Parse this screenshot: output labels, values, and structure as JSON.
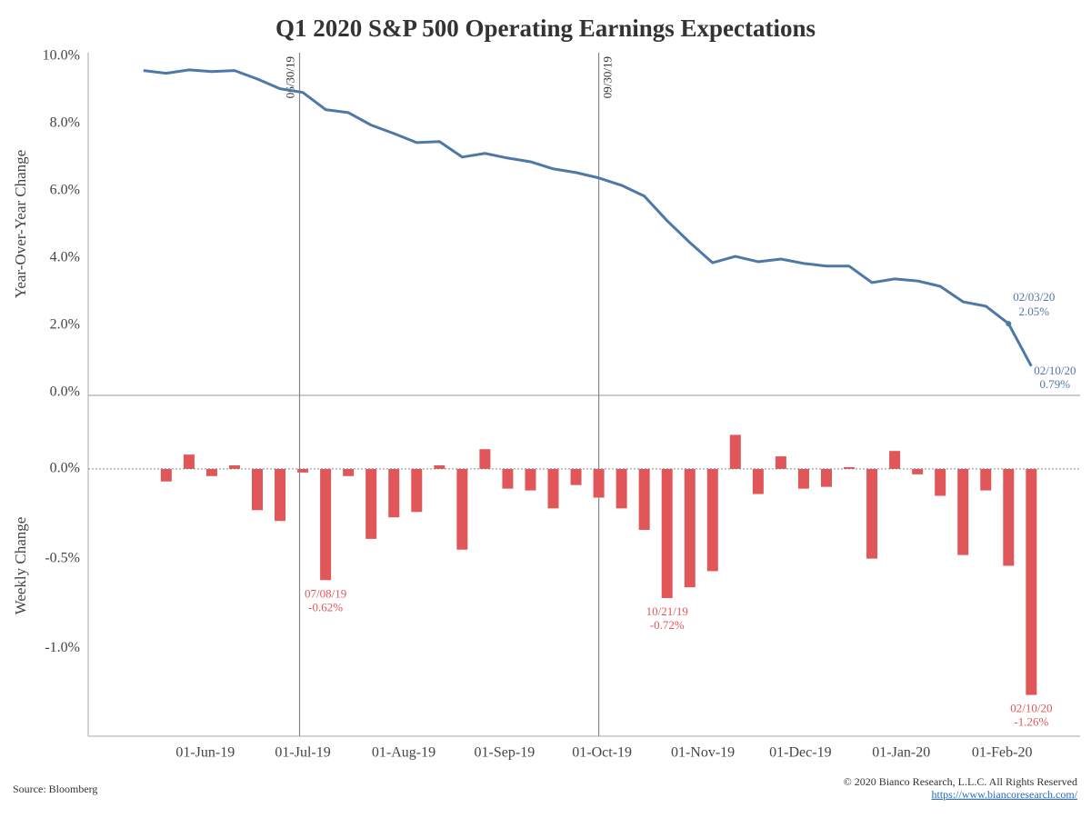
{
  "title": "Q1 2020 S&P 500 Operating Earnings Expectations",
  "source": "Source: Bloomberg",
  "copyright": "© 2020 Bianco Research, L.L.C. All Rights Reserved",
  "url": "https://www.biancoresearch.com/",
  "xlim": [
    "2019-04-26",
    "2020-02-25"
  ],
  "xticks": [
    {
      "value": "2019-06-01",
      "label": "01-Jun-19"
    },
    {
      "value": "2019-07-01",
      "label": "01-Jul-19"
    },
    {
      "value": "2019-08-01",
      "label": "01-Aug-19"
    },
    {
      "value": "2019-09-01",
      "label": "01-Sep-19"
    },
    {
      "value": "2019-10-01",
      "label": "01-Oct-19"
    },
    {
      "value": "2019-11-01",
      "label": "01-Nov-19"
    },
    {
      "value": "2019-12-01",
      "label": "01-Dec-19"
    },
    {
      "value": "2020-01-01",
      "label": "01-Jan-20"
    },
    {
      "value": "2020-02-01",
      "label": "01-Feb-20"
    }
  ],
  "reference_lines": [
    {
      "x": "2019-06-30",
      "label": "06/30/19",
      "label_side": "left"
    },
    {
      "x": "2019-09-30",
      "label": "09/30/19",
      "label_side": "right"
    }
  ],
  "chart_data": [
    {
      "type": "line",
      "y_label": "Year-Over-Year Change",
      "ylim": [
        -0.08,
        10.1
      ],
      "yticks": [
        {
          "value": 0,
          "label": "0.0%"
        },
        {
          "value": 2,
          "label": "2.0%"
        },
        {
          "value": 4,
          "label": "4.0%"
        },
        {
          "value": 6,
          "label": "6.0%"
        },
        {
          "value": 8,
          "label": "8.0%"
        },
        {
          "value": 10,
          "label": "10.0%"
        }
      ],
      "x": [
        "2019-05-13",
        "2019-05-20",
        "2019-05-27",
        "2019-06-03",
        "2019-06-10",
        "2019-06-17",
        "2019-06-24",
        "2019-07-01",
        "2019-07-08",
        "2019-07-15",
        "2019-07-22",
        "2019-07-29",
        "2019-08-05",
        "2019-08-12",
        "2019-08-19",
        "2019-08-26",
        "2019-09-02",
        "2019-09-09",
        "2019-09-16",
        "2019-09-23",
        "2019-09-30",
        "2019-10-07",
        "2019-10-14",
        "2019-10-21",
        "2019-10-28",
        "2019-11-04",
        "2019-11-11",
        "2019-11-18",
        "2019-11-25",
        "2019-12-02",
        "2019-12-09",
        "2019-12-16",
        "2019-12-23",
        "2019-12-30",
        "2020-01-06",
        "2020-01-13",
        "2020-01-20",
        "2020-01-27",
        "2020-02-03",
        "2020-02-10"
      ],
      "series": [
        {
          "name": "Year-Over-Year Change",
          "color": "#4e79a7",
          "values": [
            9.57,
            9.49,
            9.59,
            9.54,
            9.57,
            9.32,
            9.03,
            8.92,
            8.41,
            8.32,
            7.95,
            7.7,
            7.43,
            7.46,
            7.0,
            7.11,
            6.97,
            6.86,
            6.65,
            6.54,
            6.38,
            6.16,
            5.84,
            5.11,
            4.46,
            3.86,
            4.05,
            3.89,
            3.97,
            3.84,
            3.76,
            3.76,
            3.27,
            3.38,
            3.32,
            3.16,
            2.7,
            2.57,
            2.05,
            0.79
          ]
        }
      ],
      "annotations": [
        {
          "x": "2020-02-03",
          "date_label": "02/03/20",
          "value": 2.05,
          "value_label": "2.05%",
          "position": "above"
        },
        {
          "x": "2020-02-10",
          "date_label": "02/10/20",
          "value": 0.79,
          "value_label": "0.79%",
          "position": "below"
        }
      ]
    },
    {
      "type": "bar",
      "y_label": "Weekly Change",
      "ylim": [
        -1.49,
        0.41
      ],
      "yticks": [
        {
          "value": -1.0,
          "label": "-1.0%"
        },
        {
          "value": -0.5,
          "label": "-0.5%"
        },
        {
          "value": 0.0,
          "label": "0.0%"
        }
      ],
      "x": [
        "2019-05-20",
        "2019-05-27",
        "2019-06-03",
        "2019-06-10",
        "2019-06-17",
        "2019-06-24",
        "2019-07-01",
        "2019-07-08",
        "2019-07-15",
        "2019-07-22",
        "2019-07-29",
        "2019-08-05",
        "2019-08-12",
        "2019-08-19",
        "2019-08-26",
        "2019-09-02",
        "2019-09-09",
        "2019-09-16",
        "2019-09-23",
        "2019-09-30",
        "2019-10-07",
        "2019-10-14",
        "2019-10-21",
        "2019-10-28",
        "2019-11-04",
        "2019-11-11",
        "2019-11-18",
        "2019-11-25",
        "2019-12-02",
        "2019-12-09",
        "2019-12-16",
        "2019-12-23",
        "2019-12-30",
        "2020-01-06",
        "2020-01-13",
        "2020-01-20",
        "2020-01-27",
        "2020-02-03",
        "2020-02-10"
      ],
      "series": [
        {
          "name": "Weekly Change",
          "color": "#e15759",
          "values": [
            -0.07,
            0.08,
            -0.04,
            0.02,
            -0.23,
            -0.29,
            -0.02,
            -0.62,
            -0.04,
            -0.39,
            -0.27,
            -0.24,
            0.02,
            -0.45,
            0.11,
            -0.11,
            -0.12,
            -0.22,
            -0.09,
            -0.16,
            -0.22,
            -0.34,
            -0.72,
            -0.66,
            -0.57,
            0.19,
            -0.14,
            0.07,
            -0.11,
            -0.1,
            0.01,
            -0.5,
            0.1,
            -0.03,
            -0.15,
            -0.48,
            -0.12,
            -0.54,
            -1.26
          ]
        }
      ],
      "annotations": [
        {
          "x": "2019-07-08",
          "date_label": "07/08/19",
          "value": -0.62,
          "value_label": "-0.62%"
        },
        {
          "x": "2019-10-21",
          "date_label": "10/21/19",
          "value": -0.72,
          "value_label": "-0.72%"
        },
        {
          "x": "2020-02-10",
          "date_label": "02/10/20",
          "value": -1.26,
          "value_label": "-1.26%"
        }
      ]
    }
  ]
}
